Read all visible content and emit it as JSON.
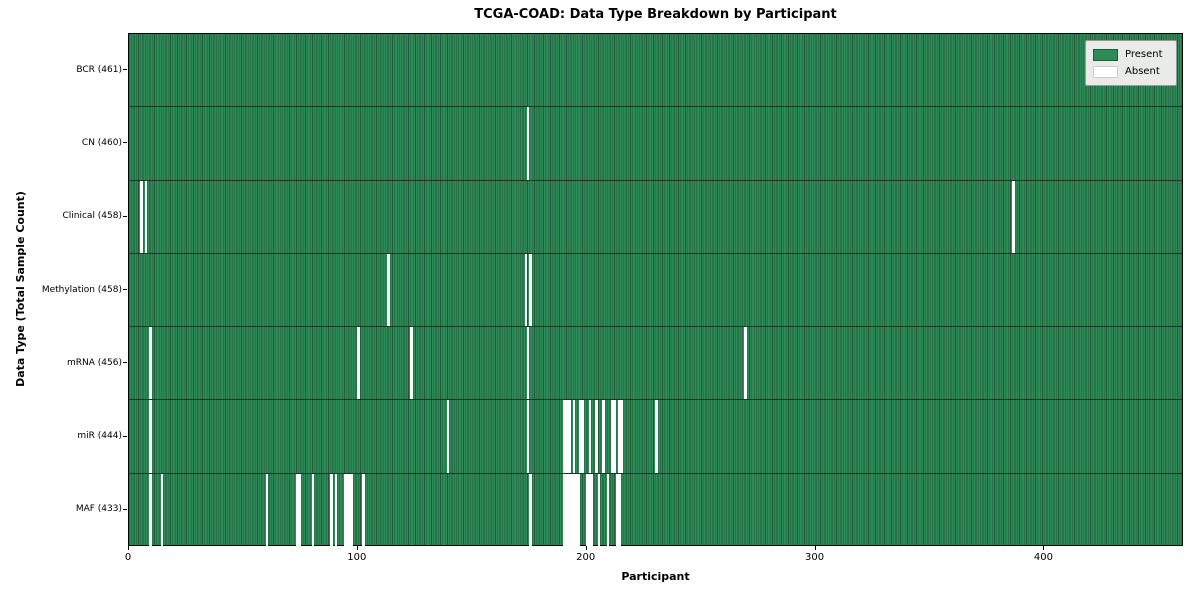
{
  "title": "TCGA-COAD: Data Type Breakdown by Participant",
  "x_axis_label": "Participant",
  "y_axis_label": "Data Type (Total Sample Count)",
  "legend": {
    "present_label": "Present",
    "absent_label": "Absent"
  },
  "colors": {
    "present": "#2e8b57",
    "present_edge": "#1d5c38",
    "absent": "#ffffff",
    "legend_bg": "#e8ebe8",
    "axis": "#000000"
  },
  "chart_data": {
    "type": "heatmap",
    "title": "TCGA-COAD: Data Type Breakdown by Participant",
    "xlabel": "Participant",
    "ylabel": "Data Type (Total Sample Count)",
    "n_participants": 461,
    "xlim": [
      0,
      461
    ],
    "x_ticks": [
      0,
      100,
      200,
      300,
      400
    ],
    "grid": false,
    "legend_entries": [
      "Present",
      "Absent"
    ],
    "legend_position": "upper right",
    "cell_states": "present unless listed in absent[]",
    "rows": [
      {
        "label": "BCR",
        "count": 461,
        "display_label": "BCR (461)",
        "absent": []
      },
      {
        "label": "CN",
        "count": 460,
        "display_label": "CN (460)",
        "absent": [
          174
        ]
      },
      {
        "label": "Clinical",
        "count": 458,
        "display_label": "Clinical (458)",
        "absent": [
          5,
          7,
          386
        ]
      },
      {
        "label": "Methylation",
        "count": 458,
        "display_label": "Methylation (458)",
        "absent": [
          113,
          173,
          175
        ]
      },
      {
        "label": "mRNA",
        "count": 456,
        "display_label": "mRNA (456)",
        "absent": [
          9,
          100,
          123,
          174,
          269
        ]
      },
      {
        "label": "miR",
        "count": 444,
        "display_label": "miR (444)",
        "absent": [
          9,
          139,
          174,
          190,
          191,
          192,
          194,
          197,
          198,
          201,
          204,
          207,
          211,
          212,
          214,
          215,
          230
        ]
      },
      {
        "label": "MAF",
        "count": 433,
        "display_label": "MAF (433)",
        "absent": [
          9,
          14,
          60,
          73,
          74,
          80,
          88,
          90,
          94,
          95,
          96,
          97,
          102,
          175,
          190,
          191,
          192,
          193,
          194,
          195,
          196,
          200,
          201,
          202,
          205,
          209,
          213,
          214
        ]
      }
    ]
  }
}
